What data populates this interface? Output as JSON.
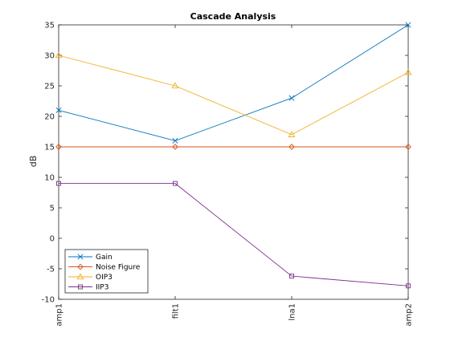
{
  "chart_data": {
    "type": "line",
    "title": "Cascade Analysis",
    "xlabel": "",
    "ylabel": "dB",
    "categories": [
      "amp1",
      "filt1",
      "lna1",
      "amp2"
    ],
    "ylim": [
      -10,
      35
    ],
    "yticks": [
      -10,
      -5,
      0,
      5,
      10,
      15,
      20,
      25,
      30,
      35
    ],
    "grid": false,
    "legend_position": "bottom-left",
    "series": [
      {
        "name": "Gain",
        "values": [
          21,
          16,
          23,
          35
        ],
        "color": "#0072BD",
        "marker": "x"
      },
      {
        "name": "Noise Figure",
        "values": [
          15,
          15,
          15,
          15
        ],
        "color": "#D95319",
        "marker": "diamond"
      },
      {
        "name": "OIP3",
        "values": [
          30,
          25,
          17,
          27.2
        ],
        "color": "#EDB120",
        "marker": "triangle"
      },
      {
        "name": "IIP3",
        "values": [
          9,
          9,
          -6.2,
          -7.8
        ],
        "color": "#7E2F8E",
        "marker": "square"
      }
    ]
  }
}
